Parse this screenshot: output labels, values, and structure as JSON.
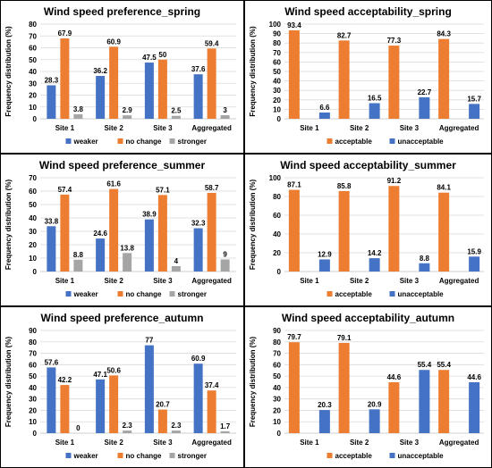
{
  "colors": {
    "weaker": "#4472C4",
    "no_change": "#ED7D31",
    "stronger": "#A5A5A5",
    "acceptable": "#ED7D31",
    "unacceptable": "#4472C4",
    "grid": "#D9D9D9",
    "axis_text": "#000000"
  },
  "chart_data": [
    {
      "type": "bar",
      "title": "Wind speed preference_spring",
      "ylabel": "Frequency distribution (%)",
      "xlabel": "",
      "ylim": [
        0,
        80
      ],
      "yticks": [
        0,
        10,
        20,
        30,
        40,
        50,
        60,
        70,
        80
      ],
      "categories": [
        "Site 1",
        "Site 2",
        "Site 3",
        "Aggregated"
      ],
      "series": [
        {
          "name": "weaker",
          "color": "#4472C4",
          "values": [
            28.3,
            36.2,
            47.5,
            37.6
          ]
        },
        {
          "name": "no change",
          "color": "#ED7D31",
          "values": [
            67.9,
            60.9,
            50,
            59.4
          ]
        },
        {
          "name": "stronger",
          "color": "#A5A5A5",
          "values": [
            3.8,
            2.9,
            2.5,
            3
          ]
        }
      ],
      "legend": "bottom"
    },
    {
      "type": "bar",
      "title": "Wind speed acceptability_spring",
      "ylabel": "Frequency distribution (%)",
      "xlabel": "",
      "ylim": [
        0,
        100
      ],
      "yticks": [
        0,
        10,
        20,
        30,
        40,
        50,
        60,
        70,
        80,
        90,
        100
      ],
      "categories": [
        "Site 1",
        "Site 2",
        "Site 3",
        "Aggregated"
      ],
      "series": [
        {
          "name": "acceptable",
          "color": "#ED7D31",
          "values": [
            93.4,
            82.7,
            77.3,
            84.3
          ]
        },
        {
          "name": "unacceptable",
          "color": "#4472C4",
          "values": [
            6.6,
            16.5,
            22.7,
            15.7
          ]
        }
      ],
      "legend": "bottom"
    },
    {
      "type": "bar",
      "title": "Wind speed preference_summer",
      "ylabel": "Frequency distribution (%)",
      "xlabel": "",
      "ylim": [
        0,
        70
      ],
      "yticks": [
        0,
        10,
        20,
        30,
        40,
        50,
        60,
        70
      ],
      "categories": [
        "Site 1",
        "Site 2",
        "Site 3",
        "Aggregated"
      ],
      "series": [
        {
          "name": "weaker",
          "color": "#4472C4",
          "values": [
            33.8,
            24.6,
            38.9,
            32.3
          ]
        },
        {
          "name": "no change",
          "color": "#ED7D31",
          "values": [
            57.4,
            61.6,
            57.1,
            58.7
          ]
        },
        {
          "name": "stronger",
          "color": "#A5A5A5",
          "values": [
            8.8,
            13.8,
            4,
            9
          ]
        }
      ],
      "legend": "bottom"
    },
    {
      "type": "bar",
      "title": "Wind speed acceptability_summer",
      "ylabel": "Frequency distribution (%)",
      "xlabel": "",
      "ylim": [
        0,
        100
      ],
      "yticks": [
        0,
        20,
        40,
        60,
        80,
        100
      ],
      "categories": [
        "Site 1",
        "Site 2",
        "Site 3",
        "Aggregated"
      ],
      "series": [
        {
          "name": "acceptable",
          "color": "#ED7D31",
          "values": [
            87.1,
            85.8,
            91.2,
            84.1
          ]
        },
        {
          "name": "unacceptable",
          "color": "#4472C4",
          "values": [
            12.9,
            14.2,
            8.8,
            15.9
          ]
        }
      ],
      "legend": "bottom"
    },
    {
      "type": "bar",
      "title": "Wind speed preference_autumn",
      "ylabel": "Frequency distribution (%)",
      "xlabel": "",
      "ylim": [
        0,
        90
      ],
      "yticks": [
        0,
        10,
        20,
        30,
        40,
        50,
        60,
        70,
        80,
        90
      ],
      "categories": [
        "Site 1",
        "Site 2",
        "Site 3",
        "Aggregated"
      ],
      "series": [
        {
          "name": "weaker",
          "color": "#4472C4",
          "values": [
            57.6,
            47.1,
            77,
            60.9
          ]
        },
        {
          "name": "no change",
          "color": "#ED7D31",
          "values": [
            42.2,
            50.6,
            20.7,
            37.4
          ]
        },
        {
          "name": "stronger",
          "color": "#A5A5A5",
          "values": [
            0,
            2.3,
            2.3,
            1.7
          ]
        }
      ],
      "legend": "bottom"
    },
    {
      "type": "bar",
      "title": "Wind speed acceptability_autumn",
      "ylabel": "Frequency distribution (%)",
      "xlabel": "",
      "ylim": [
        0,
        90
      ],
      "yticks": [
        0,
        10,
        20,
        30,
        40,
        50,
        60,
        70,
        80,
        90
      ],
      "categories": [
        "Site 1",
        "Site 2",
        "Site 3",
        "Aggregated"
      ],
      "series": [
        {
          "name": "acceptable",
          "color": "#ED7D31",
          "values": [
            79.7,
            79.1,
            44.6,
            55.4
          ]
        },
        {
          "name": "unacceptable",
          "color": "#4472C4",
          "values": [
            20.3,
            20.9,
            55.4,
            44.6
          ]
        }
      ],
      "legend": "bottom"
    }
  ]
}
